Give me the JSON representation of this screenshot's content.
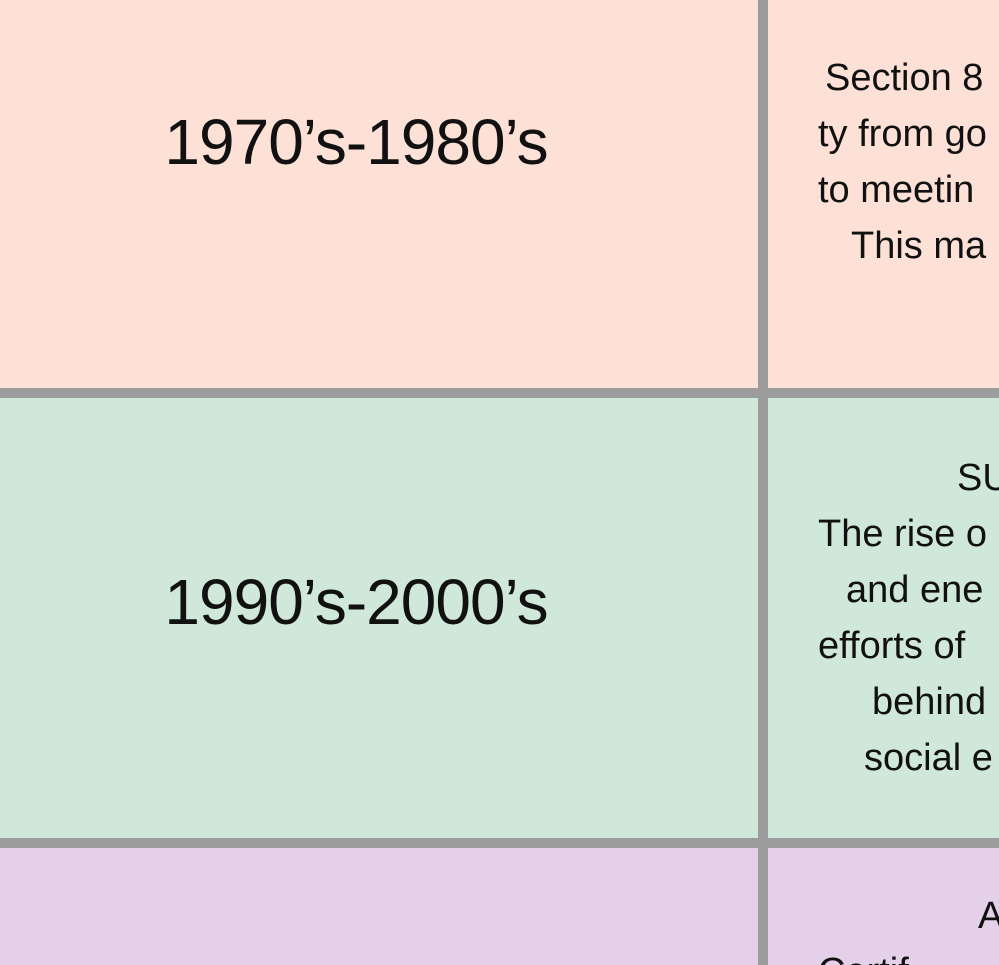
{
  "rows": [
    {
      "era": "1970’s-1980’s",
      "lines": [
        "Section 8",
        "ty from go",
        "to meetin",
        "This ma"
      ]
    },
    {
      "era": "1990’s-2000’s",
      "lines": [
        "SU",
        "The rise o",
        "and ene",
        "efforts of",
        "behind",
        "social e"
      ]
    },
    {
      "era": "",
      "lines": [
        "A",
        "Certif"
      ]
    }
  ]
}
